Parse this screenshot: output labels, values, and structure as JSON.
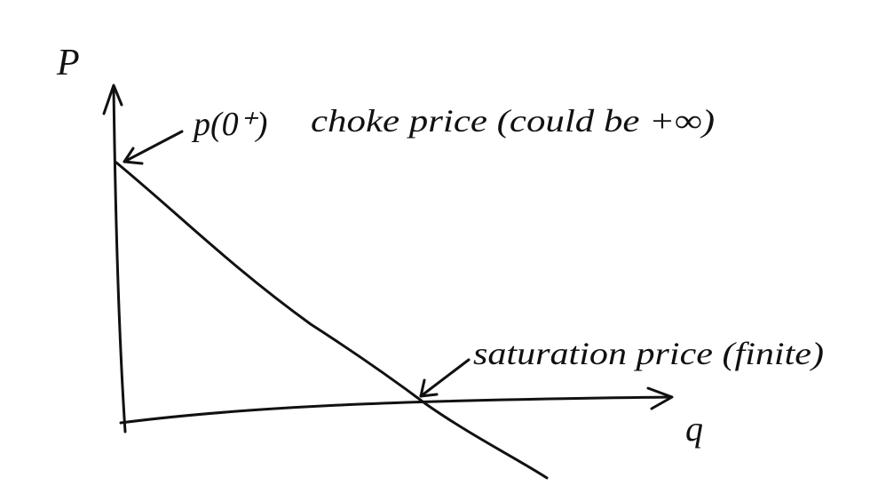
{
  "labels": {
    "y_axis": "P",
    "x_axis": "q",
    "point_top": "p(0⁺)",
    "choke_price": "choke price (could be +∞)",
    "saturation_price": "saturation price (finite)"
  }
}
